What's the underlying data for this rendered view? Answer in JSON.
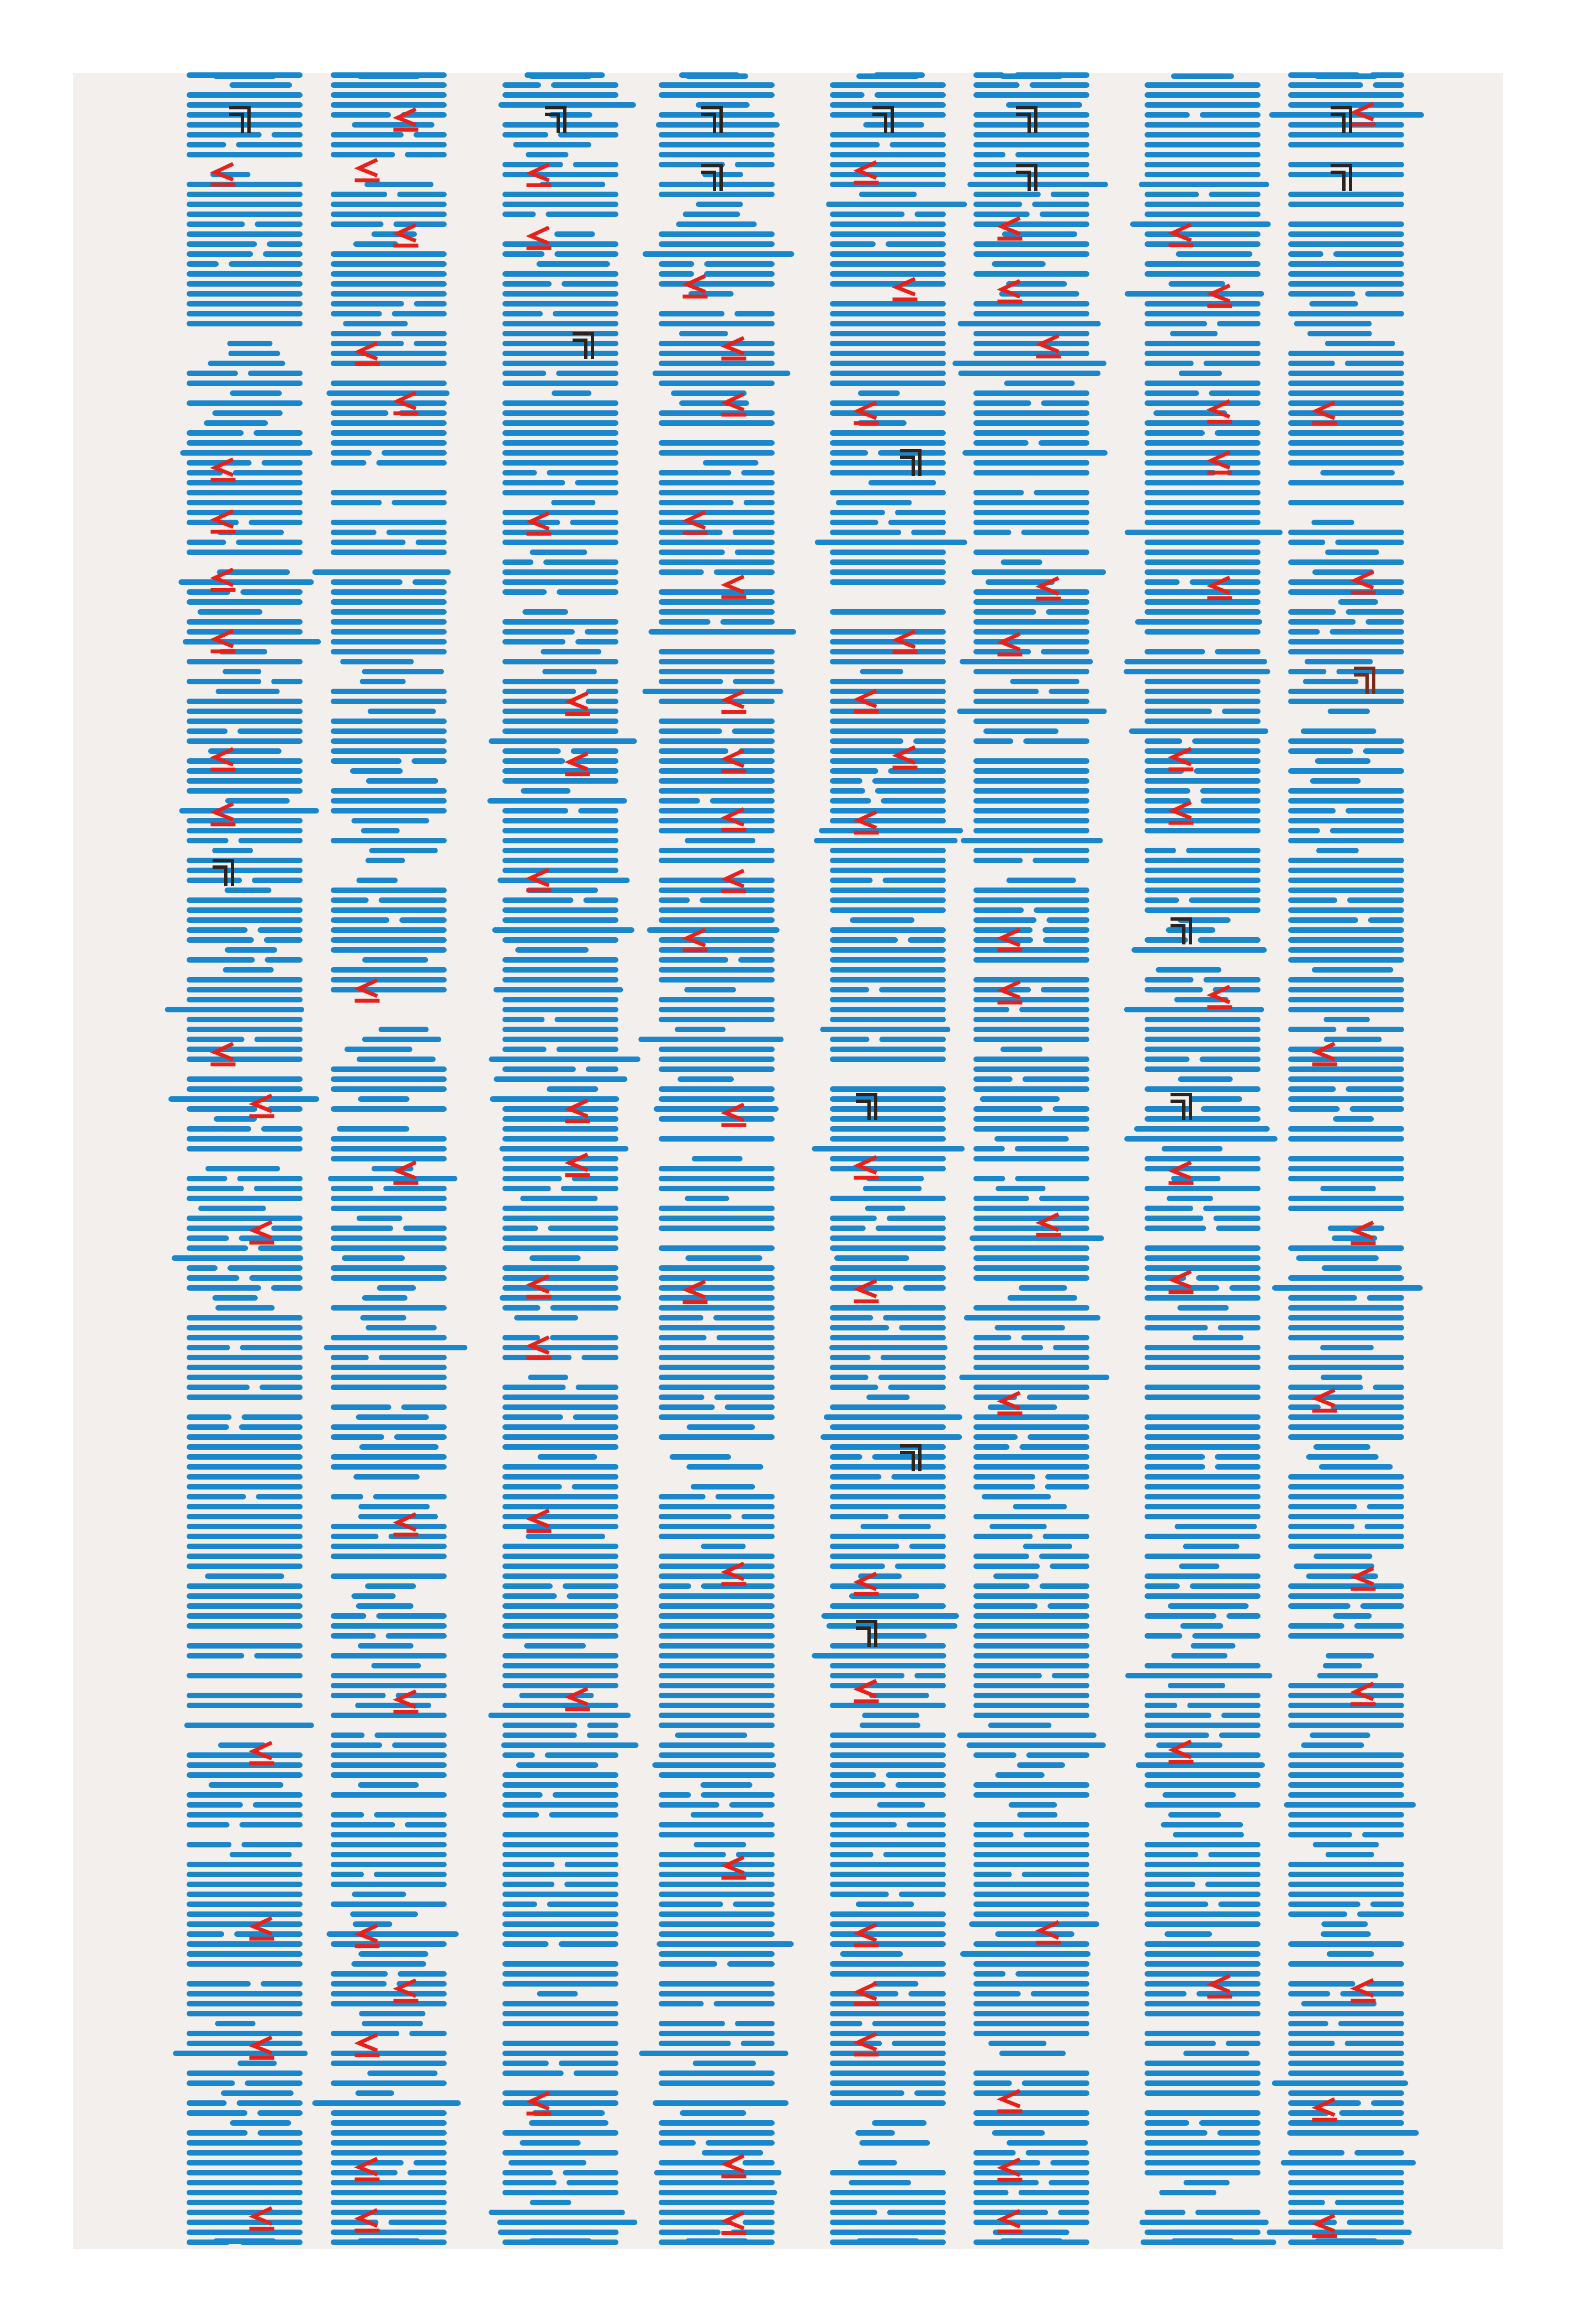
{
  "artwork": {
    "kind": "generative-glyph-print",
    "column_count": 8,
    "colors": {
      "page": "#ffffff",
      "paper": "#f3efec",
      "stroke": "#1a86cc",
      "mark": "#e8201a",
      "glyph": "#2b2320",
      "glyph_alt": "#7a2a16"
    },
    "icons": {
      "stroke": "horizontal-dash-icon",
      "mark": "angle-chevron-icon",
      "glyph": "square-hook-icon"
    }
  }
}
